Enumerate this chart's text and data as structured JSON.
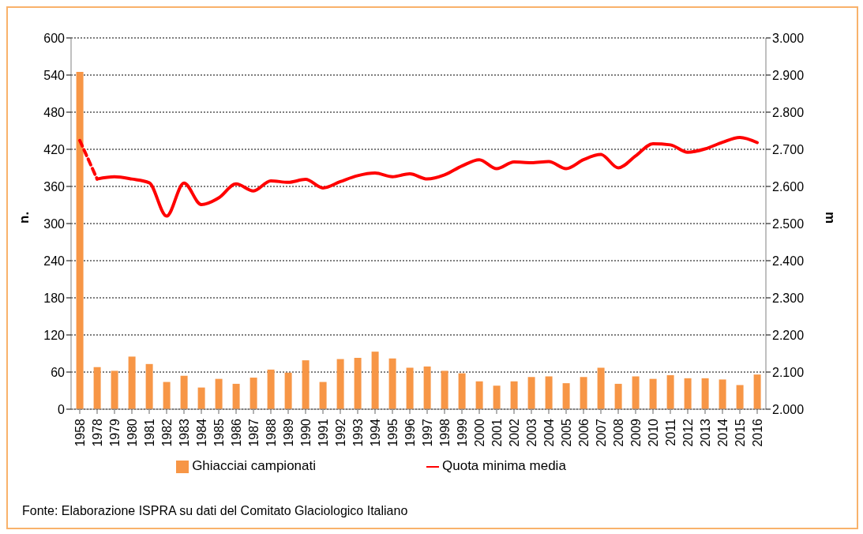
{
  "chart_data": {
    "type": "bar",
    "categories": [
      "1958",
      "1978",
      "1979",
      "1980",
      "1981",
      "1982",
      "1983",
      "1984",
      "1985",
      "1986",
      "1987",
      "1988",
      "1989",
      "1990",
      "1991",
      "1992",
      "1993",
      "1994",
      "1995",
      "1996",
      "1997",
      "1998",
      "1999",
      "2000",
      "2001",
      "2002",
      "2003",
      "2004",
      "2005",
      "2006",
      "2007",
      "2008",
      "2009",
      "2010",
      "2011",
      "2012",
      "2013",
      "2014",
      "2015",
      "2016"
    ],
    "series": [
      {
        "name": "Ghiacciai campionati",
        "color": "#f79646",
        "values": [
          545,
          68,
          62,
          85,
          73,
          44,
          54,
          35,
          49,
          41,
          51,
          64,
          59,
          79,
          44,
          81,
          83,
          93,
          82,
          67,
          69,
          62,
          58,
          45,
          38,
          45,
          52,
          53,
          42,
          52,
          67,
          41,
          53,
          49,
          55,
          50,
          50,
          48,
          39,
          56
        ]
      },
      {
        "name": "Quota minima media",
        "type": "line",
        "axis": "y2",
        "color": "#ff0000",
        "line_style": "solid",
        "values": [
          null,
          2620,
          2626,
          2620,
          2610,
          2520,
          2609,
          2551,
          2569,
          2607,
          2588,
          2615,
          2611,
          2619,
          2596,
          2613,
          2629,
          2636,
          2626,
          2634,
          2620,
          2631,
          2655,
          2672,
          2648,
          2666,
          2664,
          2667,
          2648,
          2672,
          2686,
          2650,
          2682,
          2715,
          2712,
          2692,
          2701,
          2719,
          2732,
          2718
        ]
      },
      {
        "type": "line",
        "axis": "y2",
        "color": "#ff0000",
        "line_style": "dashed",
        "values": [
          2724,
          2620,
          null,
          null,
          null,
          null,
          null,
          null,
          null,
          null,
          null,
          null,
          null,
          null,
          null,
          null,
          null,
          null,
          null,
          null,
          null,
          null,
          null,
          null,
          null,
          null,
          null,
          null,
          null,
          null,
          null,
          null,
          null,
          null,
          null,
          null,
          null,
          null,
          null,
          null
        ]
      }
    ],
    "ylabel": "n.",
    "y2label": "m",
    "ylim": [
      0,
      600
    ],
    "yticks": [
      0,
      60,
      120,
      180,
      240,
      300,
      360,
      420,
      480,
      540,
      600
    ],
    "y2lim": [
      2000,
      3000
    ],
    "y2ticks": [
      {
        "value": 2000,
        "label": "2.000"
      },
      {
        "value": 2100,
        "label": "2.100"
      },
      {
        "value": 2200,
        "label": "2.200"
      },
      {
        "value": 2300,
        "label": "2.300"
      },
      {
        "value": 2400,
        "label": "2.400"
      },
      {
        "value": 2500,
        "label": "2.500"
      },
      {
        "value": 2600,
        "label": "2.600"
      },
      {
        "value": 2700,
        "label": "2.700"
      },
      {
        "value": 2800,
        "label": "2.800"
      },
      {
        "value": 2900,
        "label": "2.900"
      },
      {
        "value": 3000,
        "label": "3.000"
      }
    ],
    "grid": "y",
    "legend": "bottom",
    "marker": "none",
    "annotations": [
      "Fonte: Elaborazione ISPRA su dati del Comitato Glaciologico Italiano"
    ]
  }
}
